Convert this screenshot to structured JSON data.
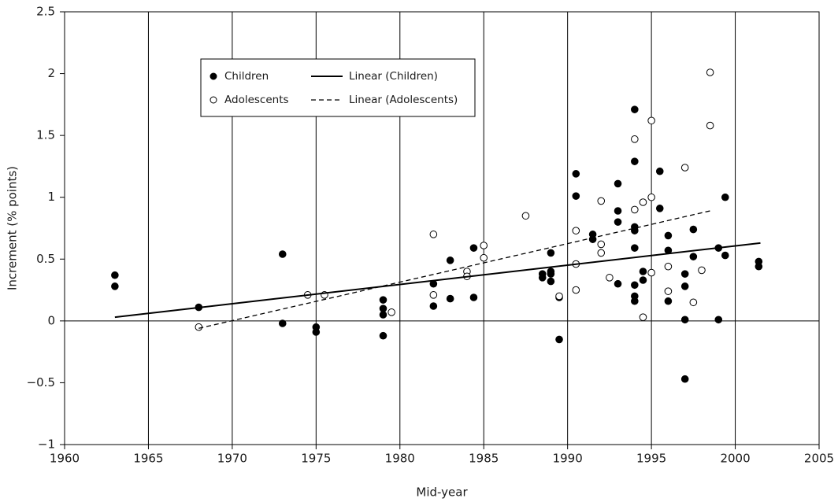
{
  "chart_data": {
    "type": "scatter",
    "x_label": "Mid-year",
    "y_label": "Increment (% points)",
    "xlim": [
      1960,
      2005
    ],
    "xticks": [
      1960,
      1965,
      1970,
      1975,
      1980,
      1985,
      1990,
      1995,
      2000,
      2005
    ],
    "ylim": [
      -1,
      2.5
    ],
    "yticks": [
      {
        "value": -1,
        "label": "−1"
      },
      {
        "value": -0.5,
        "label": "−0.5"
      },
      0,
      0.5,
      1,
      1.5,
      2,
      2.5
    ],
    "grid": "x",
    "legend": "upper left",
    "series": [
      {
        "name": "Children",
        "kind": "points",
        "marker": "filled",
        "color": "#000000",
        "x": [
          1963,
          1963,
          1968,
          1973,
          1973,
          1975,
          1975,
          1979,
          1979,
          1979,
          1979,
          1982,
          1982,
          1983,
          1983,
          1984.4,
          1984.4,
          1988.5,
          1988.5,
          1989,
          1989,
          1989,
          1989,
          1989.5,
          1989.5,
          1990.5,
          1990.5,
          1991.5,
          1991.5,
          1993,
          1993,
          1993,
          1993,
          1994,
          1994,
          1994,
          1994,
          1994,
          1994,
          1994,
          1994,
          1994.5,
          1994.5,
          1995.5,
          1995.5,
          1996,
          1996,
          1996,
          1997,
          1997,
          1997,
          1997,
          1997.5,
          1997.5,
          1999,
          1999,
          1999.4,
          1999.4,
          2001.4,
          2001.4
        ],
        "values": [
          0.37,
          0.28,
          0.11,
          0.54,
          -0.02,
          -0.05,
          -0.09,
          0.17,
          0.1,
          0.05,
          -0.12,
          0.3,
          0.12,
          0.49,
          0.18,
          0.59,
          0.19,
          0.38,
          0.35,
          0.38,
          0.4,
          0.32,
          0.55,
          0.19,
          -0.15,
          1.19,
          1.01,
          0.7,
          0.66,
          1.11,
          0.89,
          0.8,
          0.3,
          1.71,
          1.29,
          0.76,
          0.73,
          0.59,
          0.29,
          0.2,
          0.16,
          0.4,
          0.33,
          1.21,
          0.91,
          0.69,
          0.57,
          0.16,
          0.38,
          0.28,
          0.01,
          -0.47,
          0.74,
          0.52,
          0.59,
          0.01,
          1.0,
          0.53,
          0.48,
          0.44
        ]
      },
      {
        "name": "Adolescents",
        "kind": "points",
        "marker": "open",
        "color": "#000000",
        "x": [
          1968,
          1974.5,
          1975.5,
          1979.5,
          1982,
          1982,
          1984,
          1984,
          1985,
          1985,
          1987.5,
          1989.5,
          1990.5,
          1990.5,
          1990.5,
          1992,
          1992,
          1992,
          1992.5,
          1994,
          1994,
          1994.5,
          1994.5,
          1995,
          1995,
          1995,
          1996,
          1996,
          1997,
          1997.5,
          1998,
          1998.5,
          1998.5
        ],
        "values": [
          -0.05,
          0.21,
          0.21,
          0.07,
          0.7,
          0.21,
          0.4,
          0.36,
          0.61,
          0.51,
          0.85,
          0.2,
          0.73,
          0.46,
          0.25,
          0.97,
          0.62,
          0.55,
          0.35,
          1.47,
          0.9,
          0.96,
          0.03,
          1.62,
          1.0,
          0.39,
          0.44,
          0.24,
          1.24,
          0.15,
          0.41,
          1.58,
          2.01
        ]
      },
      {
        "name": "Linear (Children)",
        "kind": "line",
        "dash": "solid",
        "color": "#000000",
        "x": [
          1963,
          2001.5
        ],
        "values": [
          0.03,
          0.63
        ]
      },
      {
        "name": "Linear (Adolescents)",
        "kind": "line",
        "dash": "dashed",
        "color": "#000000",
        "x": [
          1968,
          1998.5
        ],
        "values": [
          -0.06,
          0.89
        ]
      }
    ]
  }
}
